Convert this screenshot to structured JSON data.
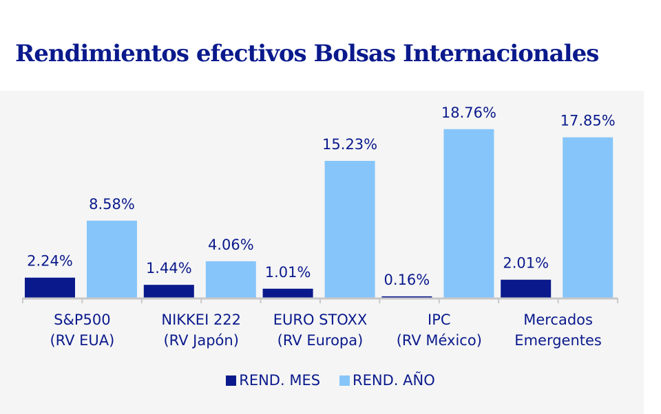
{
  "chart_data": {
    "type": "bar",
    "title": "Rendimientos efectivos Bolsas Internacionales",
    "categories": [
      [
        "S&P500",
        "(RV EUA)"
      ],
      [
        "NIKKEI 222",
        "(RV Japón)"
      ],
      [
        "EURO STOXX",
        "(RV Europa)"
      ],
      [
        "IPC",
        "(RV México)"
      ],
      [
        "Mercados",
        "Emergentes"
      ]
    ],
    "series": [
      {
        "name": "REND. MES",
        "color": "#0a1a8c",
        "values": [
          2.24,
          1.44,
          1.01,
          0.16,
          2.01
        ],
        "labels": [
          "2.24%",
          "1.44%",
          "1.01%",
          "0.16%",
          "2.01%"
        ]
      },
      {
        "name": "REND. AÑO",
        "color": "#86c5fa",
        "values": [
          8.58,
          4.06,
          15.23,
          18.76,
          17.85
        ],
        "labels": [
          "8.58%",
          "4.06%",
          "15.23%",
          "18.76%",
          "17.85%"
        ]
      }
    ],
    "ylim": [
      0,
      22.8
    ],
    "grid": false,
    "legend": "bottom"
  }
}
